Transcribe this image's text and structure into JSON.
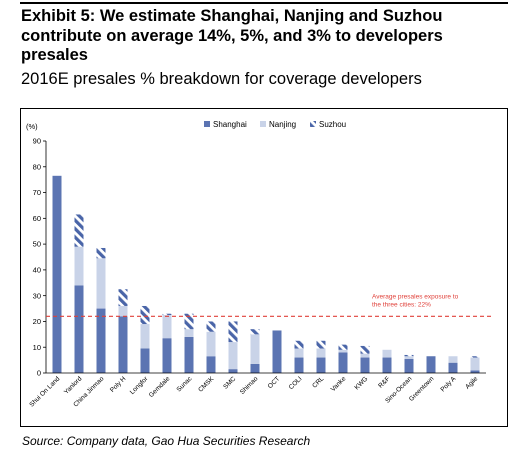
{
  "page": {
    "title": "Exhibit 5: We estimate Shanghai, Nanjing and Suzhou contribute on average 14%, 5%, and 3% to developers presales",
    "subtitle": "2016E presales % breakdown for coverage developers",
    "source": "Source: Company data, Gao Hua Securities Research"
  },
  "colors": {
    "shanghai": "#5b74b2",
    "nanjing": "#c9d3e8",
    "suzhou": "#4a65a8",
    "reference_line": "#e0413a",
    "annotation": "#e0413a"
  },
  "chart_data": {
    "type": "bar",
    "stacked": true,
    "unit_label": "(%)",
    "ylim": [
      0,
      90
    ],
    "yticks": [
      0,
      10,
      20,
      30,
      40,
      50,
      60,
      70,
      80,
      90
    ],
    "grid": false,
    "legend_position": "top",
    "categories": [
      "Shui On Land",
      "Yanlord",
      "China Jinmao",
      "Poly H",
      "Longfor",
      "Gemdale",
      "Sunac",
      "CMSK",
      "SMC",
      "Shimao",
      "OCT",
      "COLI",
      "CRL",
      "Vanke",
      "KWG",
      "R&F",
      "Sino-Ocean",
      "Greentown",
      "Poly A",
      "Agile"
    ],
    "series": [
      {
        "name": "Shanghai",
        "values": [
          76.5,
          34,
          25,
          22,
          9.5,
          13.5,
          14,
          6.5,
          1.5,
          3.5,
          16.5,
          6,
          6,
          8,
          6,
          6,
          5.5,
          6.5,
          4,
          1
        ]
      },
      {
        "name": "Nanjing",
        "values": [
          0,
          15,
          19.5,
          4,
          9.5,
          9,
          3,
          9.5,
          10.5,
          11.5,
          0,
          3.5,
          3.5,
          1,
          1.5,
          3,
          1,
          0,
          2.5,
          5
        ]
      },
      {
        "name": "Suzhou",
        "values": [
          0,
          12.5,
          4,
          6.5,
          7,
          0.5,
          6,
          4,
          8,
          2,
          0,
          3,
          3,
          2,
          3,
          0,
          0.5,
          0,
          0,
          0.5
        ]
      }
    ],
    "reference_line": {
      "value": 22,
      "label": "Average presales exposure to the three cities: 22%"
    }
  }
}
